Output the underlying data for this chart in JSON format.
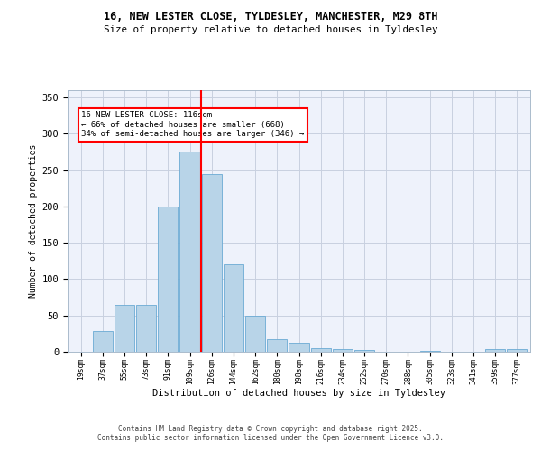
{
  "title_line1": "16, NEW LESTER CLOSE, TYLDESLEY, MANCHESTER, M29 8TH",
  "title_line2": "Size of property relative to detached houses in Tyldesley",
  "xlabel": "Distribution of detached houses by size in Tyldesley",
  "ylabel": "Number of detached properties",
  "footer_line1": "Contains HM Land Registry data © Crown copyright and database right 2025.",
  "footer_line2": "Contains public sector information licensed under the Open Government Licence v3.0.",
  "bar_labels": [
    "19sqm",
    "37sqm",
    "55sqm",
    "73sqm",
    "91sqm",
    "109sqm",
    "126sqm",
    "144sqm",
    "162sqm",
    "180sqm",
    "198sqm",
    "216sqm",
    "234sqm",
    "252sqm",
    "270sqm",
    "288sqm",
    "305sqm",
    "323sqm",
    "341sqm",
    "359sqm",
    "377sqm"
  ],
  "bar_values": [
    0,
    28,
    65,
    65,
    200,
    275,
    245,
    120,
    50,
    18,
    12,
    5,
    4,
    2,
    0,
    0,
    1,
    0,
    0,
    4,
    4
  ],
  "bar_color": "#b8d4e8",
  "bar_edge_color": "#6aaad4",
  "vline_x": 5.5,
  "vline_color": "red",
  "annotation_text": "16 NEW LESTER CLOSE: 116sqm\n← 66% of detached houses are smaller (668)\n34% of semi-detached houses are larger (346) →",
  "annotation_box_color": "white",
  "annotation_box_edge": "red",
  "ylim": [
    0,
    360
  ],
  "yticks": [
    0,
    50,
    100,
    150,
    200,
    250,
    300,
    350
  ],
  "bg_color": "#eef2fb",
  "grid_color": "#c8d0e0",
  "bin_width": 1
}
